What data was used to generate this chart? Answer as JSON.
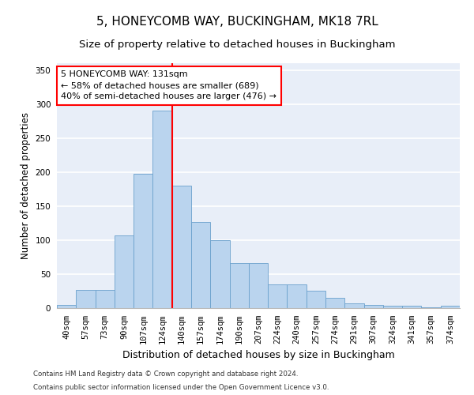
{
  "title": "5, HONEYCOMB WAY, BUCKINGHAM, MK18 7RL",
  "subtitle": "Size of property relative to detached houses in Buckingham",
  "xlabel": "Distribution of detached houses by size in Buckingham",
  "ylabel": "Number of detached properties",
  "categories": [
    "40sqm",
    "57sqm",
    "73sqm",
    "90sqm",
    "107sqm",
    "124sqm",
    "140sqm",
    "157sqm",
    "174sqm",
    "190sqm",
    "207sqm",
    "224sqm",
    "240sqm",
    "257sqm",
    "274sqm",
    "291sqm",
    "307sqm",
    "324sqm",
    "341sqm",
    "357sqm",
    "374sqm"
  ],
  "values": [
    5,
    27,
    27,
    107,
    197,
    290,
    180,
    127,
    100,
    66,
    66,
    35,
    35,
    25,
    15,
    7,
    5,
    4,
    4,
    1,
    3
  ],
  "bar_color": "#bad4ee",
  "bar_edge_color": "#6aa0cc",
  "vline_x": 5.5,
  "vline_color": "red",
  "annotation_text": "5 HONEYCOMB WAY: 131sqm\n← 58% of detached houses are smaller (689)\n40% of semi-detached houses are larger (476) →",
  "annotation_box_color": "white",
  "annotation_box_edge": "red",
  "ylim": [
    0,
    360
  ],
  "yticks": [
    0,
    50,
    100,
    150,
    200,
    250,
    300,
    350
  ],
  "footer1": "Contains HM Land Registry data © Crown copyright and database right 2024.",
  "footer2": "Contains public sector information licensed under the Open Government Licence v3.0.",
  "bg_color": "#e8eef8",
  "grid_color": "white",
  "title_fontsize": 11,
  "subtitle_fontsize": 9.5,
  "tick_fontsize": 7.5,
  "ylabel_fontsize": 8.5,
  "xlabel_fontsize": 9,
  "annotation_fontsize": 8
}
